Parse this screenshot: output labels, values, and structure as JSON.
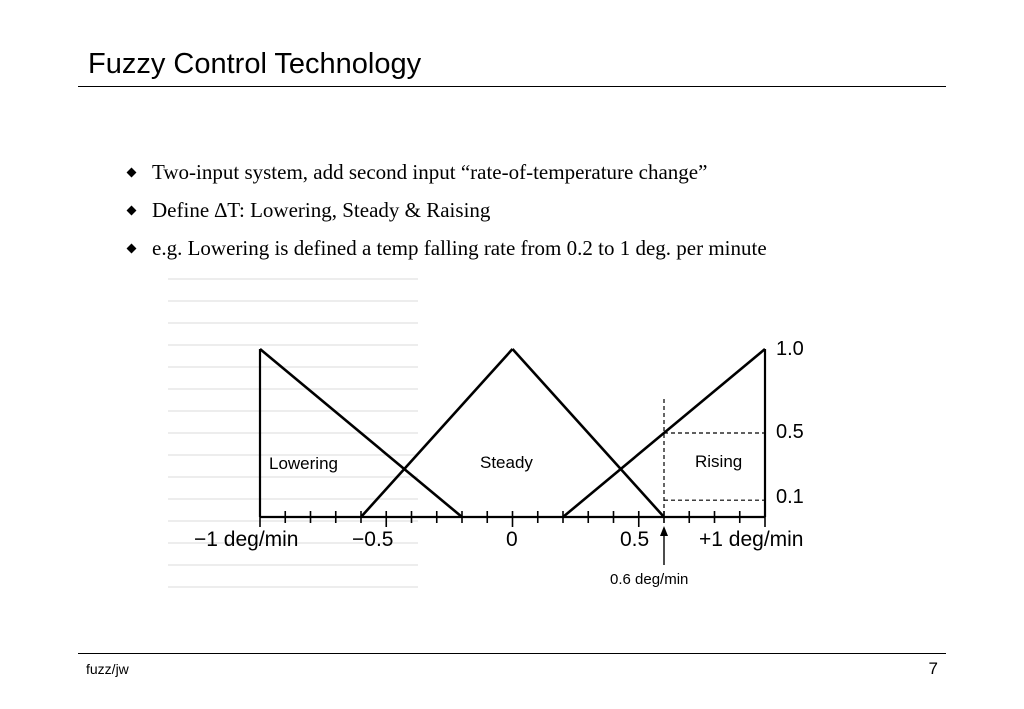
{
  "slide": {
    "title": "Fuzzy Control Technology",
    "bullets": [
      "Two-input system, add second input “rate-of-temperature change”",
      "Define ∆T: Lowering, Steady & Raising",
      "e.g. Lowering is defined a temp falling rate from 0.2 to 1 deg.  per minute"
    ],
    "footer_left": "fuzz/jw",
    "page_number": "7"
  },
  "diagram": {
    "x_labels": [
      "−1 deg/min",
      "−0.5",
      "0",
      "0.5",
      "+1 deg/min"
    ],
    "y_labels": [
      "1.0",
      "0.5",
      "0.1"
    ],
    "sets": [
      "Lowering",
      "Steady",
      "Rising"
    ],
    "marker_label": "0.6 deg/min",
    "memberships": [
      {
        "name": "Lowering",
        "points": [
          [
            -1,
            1
          ],
          [
            -1,
            0
          ],
          [
            -0.2,
            0
          ]
        ],
        "peak_line": [
          [
            -1,
            1
          ],
          [
            -0.2,
            0
          ]
        ]
      },
      {
        "name": "Steady",
        "points": [
          [
            -0.6,
            0
          ],
          [
            0,
            1
          ],
          [
            0.6,
            0
          ]
        ]
      },
      {
        "name": "Rising",
        "points": [
          [
            0.2,
            0
          ],
          [
            1,
            1
          ],
          [
            1,
            0
          ]
        ],
        "peak_line": [
          [
            0.2,
            0
          ],
          [
            1,
            1
          ]
        ]
      }
    ],
    "marker_x": 0.6,
    "reference_levels": [
      0.5,
      0.1
    ]
  }
}
